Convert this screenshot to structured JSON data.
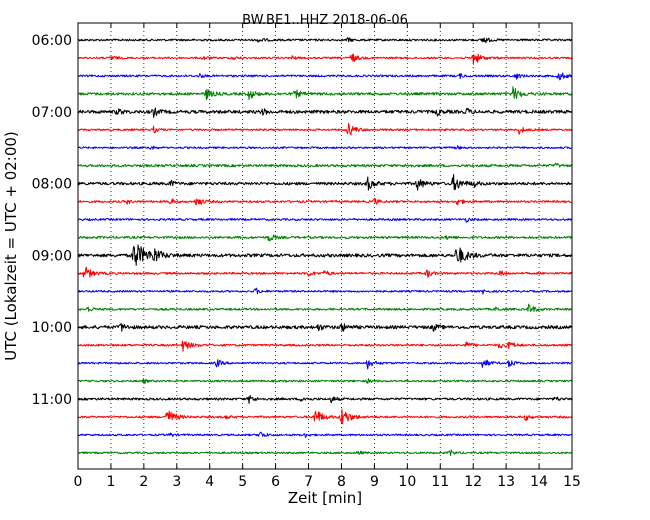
{
  "chart_data": {
    "type": "line",
    "title": "BW.BE1..HHZ 2018-06-06",
    "xlabel": "Zeit  [min]",
    "ylabel": "UTC (Lokalzeit = UTC + 02:00)",
    "xlim": [
      0,
      15
    ],
    "x_ticks": [
      "0",
      "1",
      "2",
      "3",
      "4",
      "5",
      "6",
      "7",
      "8",
      "9",
      "10",
      "11",
      "12",
      "13",
      "14",
      "15"
    ],
    "y_tick_labels": [
      "06:00",
      "07:00",
      "08:00",
      "09:00",
      "10:00",
      "11:00"
    ],
    "grid": "vertical dotted",
    "trace_colors": [
      "#000000",
      "#ff0000",
      "#0000ff",
      "#008000"
    ],
    "series": [
      {
        "row": 0,
        "color": "#000000",
        "noise": 1.0,
        "events": [
          [
            5.5,
            3
          ],
          [
            8.2,
            2
          ],
          [
            12.3,
            4
          ]
        ]
      },
      {
        "row": 1,
        "color": "#ff0000",
        "noise": 0.9,
        "events": [
          [
            1.0,
            3
          ],
          [
            3.8,
            2
          ],
          [
            4.7,
            2
          ],
          [
            6.5,
            2
          ],
          [
            8.3,
            5
          ],
          [
            12.0,
            7
          ]
        ]
      },
      {
        "row": 2,
        "color": "#0000ff",
        "noise": 1.0,
        "events": [
          [
            3.7,
            2
          ],
          [
            11.6,
            2
          ],
          [
            13.3,
            3
          ],
          [
            14.6,
            5
          ]
        ]
      },
      {
        "row": 3,
        "color": "#008000",
        "noise": 1.3,
        "events": [
          [
            3.9,
            5
          ],
          [
            5.2,
            5
          ],
          [
            6.6,
            4
          ],
          [
            13.2,
            7
          ]
        ]
      },
      {
        "row": 4,
        "color": "#000000",
        "noise": 1.6,
        "events": [
          [
            1.2,
            3
          ],
          [
            2.3,
            4
          ],
          [
            5.6,
            3
          ],
          [
            10.9,
            3
          ],
          [
            11.8,
            3
          ]
        ]
      },
      {
        "row": 5,
        "color": "#ff0000",
        "noise": 0.9,
        "events": [
          [
            2.3,
            3
          ],
          [
            8.2,
            7
          ],
          [
            13.4,
            4
          ]
        ]
      },
      {
        "row": 6,
        "color": "#0000ff",
        "noise": 0.9,
        "events": [
          [
            2.2,
            2
          ],
          [
            11.5,
            2
          ]
        ]
      },
      {
        "row": 7,
        "color": "#008000",
        "noise": 1.2,
        "events": [
          [
            10.0,
            2
          ],
          [
            14.5,
            2
          ]
        ]
      },
      {
        "row": 8,
        "color": "#000000",
        "noise": 1.4,
        "events": [
          [
            2.8,
            3
          ],
          [
            8.8,
            6
          ],
          [
            10.3,
            6
          ],
          [
            11.4,
            8
          ],
          [
            12.0,
            3
          ]
        ]
      },
      {
        "row": 9,
        "color": "#ff0000",
        "noise": 1.0,
        "events": [
          [
            1.5,
            2
          ],
          [
            2.8,
            3
          ],
          [
            3.6,
            5
          ],
          [
            9.0,
            3
          ],
          [
            11.5,
            4
          ]
        ]
      },
      {
        "row": 10,
        "color": "#0000ff",
        "noise": 1.0,
        "events": [
          [
            11.8,
            2
          ]
        ]
      },
      {
        "row": 11,
        "color": "#008000",
        "noise": 1.1,
        "events": [
          [
            5.8,
            4
          ],
          [
            11.2,
            2
          ]
        ]
      },
      {
        "row": 12,
        "color": "#000000",
        "noise": 1.6,
        "events": [
          [
            1.7,
            14
          ],
          [
            2.3,
            6
          ],
          [
            11.5,
            10
          ]
        ]
      },
      {
        "row": 13,
        "color": "#ff0000",
        "noise": 1.0,
        "events": [
          [
            0.2,
            7
          ],
          [
            7.0,
            3
          ],
          [
            7.5,
            3
          ],
          [
            10.6,
            4
          ],
          [
            12.8,
            3
          ]
        ]
      },
      {
        "row": 14,
        "color": "#0000ff",
        "noise": 0.9,
        "events": [
          [
            5.4,
            3
          ],
          [
            12.3,
            2
          ]
        ]
      },
      {
        "row": 15,
        "color": "#008000",
        "noise": 1.0,
        "events": [
          [
            0.3,
            3
          ],
          [
            12.7,
            2
          ],
          [
            13.7,
            5
          ]
        ]
      },
      {
        "row": 16,
        "color": "#000000",
        "noise": 1.6,
        "events": [
          [
            1.3,
            4
          ],
          [
            7.3,
            3
          ],
          [
            8.0,
            4
          ],
          [
            10.8,
            3
          ]
        ]
      },
      {
        "row": 17,
        "color": "#ff0000",
        "noise": 1.0,
        "events": [
          [
            3.2,
            6
          ],
          [
            11.8,
            3
          ],
          [
            12.8,
            3
          ],
          [
            13.1,
            4
          ]
        ]
      },
      {
        "row": 18,
        "color": "#0000ff",
        "noise": 0.9,
        "events": [
          [
            4.2,
            4
          ],
          [
            8.8,
            5
          ],
          [
            12.3,
            5
          ],
          [
            13.1,
            4
          ]
        ]
      },
      {
        "row": 19,
        "color": "#008000",
        "noise": 0.9,
        "events": [
          [
            2.0,
            2
          ],
          [
            8.8,
            2
          ]
        ]
      },
      {
        "row": 20,
        "color": "#000000",
        "noise": 1.1,
        "events": [
          [
            5.2,
            4
          ],
          [
            6.8,
            3
          ],
          [
            7.7,
            3
          ],
          [
            14.5,
            2
          ]
        ]
      },
      {
        "row": 21,
        "color": "#ff0000",
        "noise": 1.0,
        "events": [
          [
            2.7,
            8
          ],
          [
            4.5,
            2
          ],
          [
            7.2,
            8
          ],
          [
            8.0,
            9
          ],
          [
            13.6,
            3
          ]
        ]
      },
      {
        "row": 22,
        "color": "#0000ff",
        "noise": 0.9,
        "events": [
          [
            2.8,
            2
          ],
          [
            5.5,
            4
          ],
          [
            6.9,
            2
          ]
        ]
      },
      {
        "row": 23,
        "color": "#008000",
        "noise": 0.9,
        "events": [
          [
            8.5,
            2
          ],
          [
            11.3,
            3
          ]
        ]
      }
    ]
  }
}
